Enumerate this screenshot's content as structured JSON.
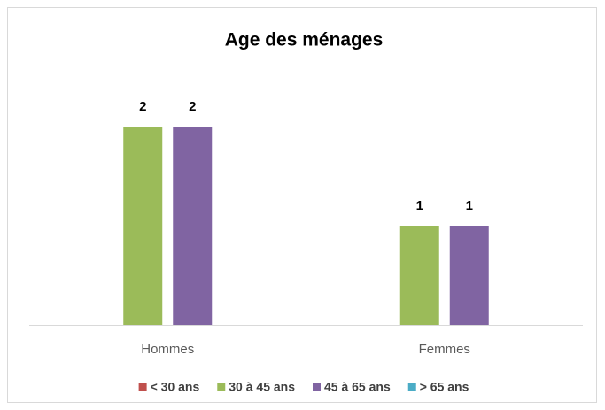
{
  "chart_data": {
    "type": "bar",
    "title": "Age des ménages",
    "categories": [
      "Hommes",
      "Femmes"
    ],
    "series": [
      {
        "name": "< 30 ans",
        "color": "#c0504d",
        "values": [
          null,
          null
        ]
      },
      {
        "name": "30 à 45 ans",
        "color": "#9bbb59",
        "values": [
          2,
          1
        ]
      },
      {
        "name": "45 à 65 ans",
        "color": "#8064a2",
        "values": [
          2,
          1
        ]
      },
      {
        "name": "> 65 ans",
        "color": "#4bacc6",
        "values": [
          null,
          null
        ]
      }
    ],
    "ylim": [
      0,
      2.5
    ],
    "grid": false,
    "legend": "bottom",
    "data_labels": true
  }
}
